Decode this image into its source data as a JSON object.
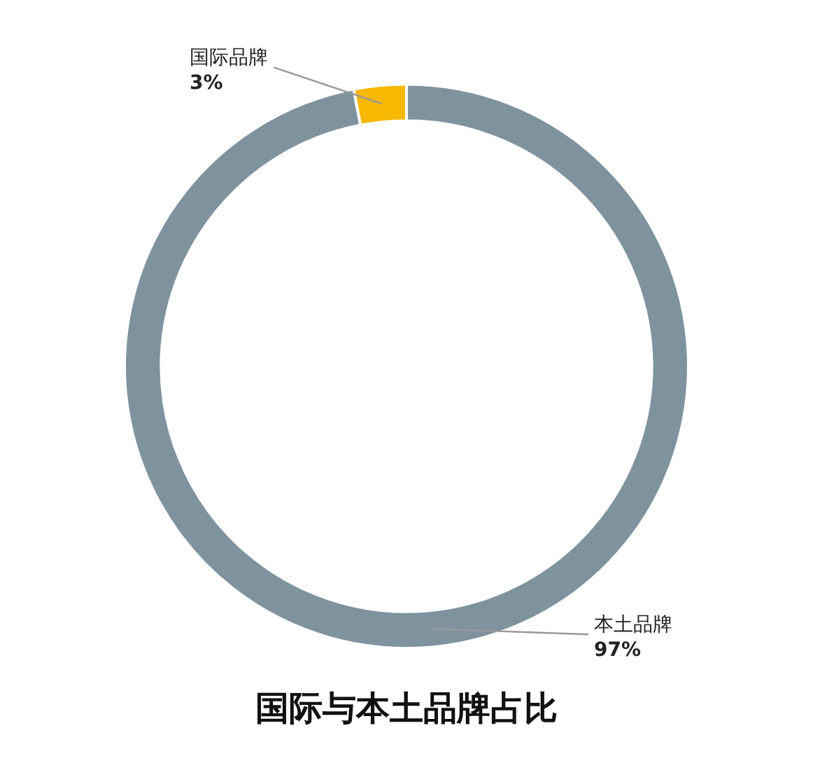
{
  "chart_data": {
    "type": "donut",
    "title": "国际与本土品牌占比",
    "categories": [
      "本土品牌",
      "国际品牌"
    ],
    "values": [
      97,
      3
    ],
    "colors": [
      "#7f939f",
      "#f6b800"
    ],
    "value_labels": [
      "97%",
      "3%"
    ],
    "legend": false
  }
}
